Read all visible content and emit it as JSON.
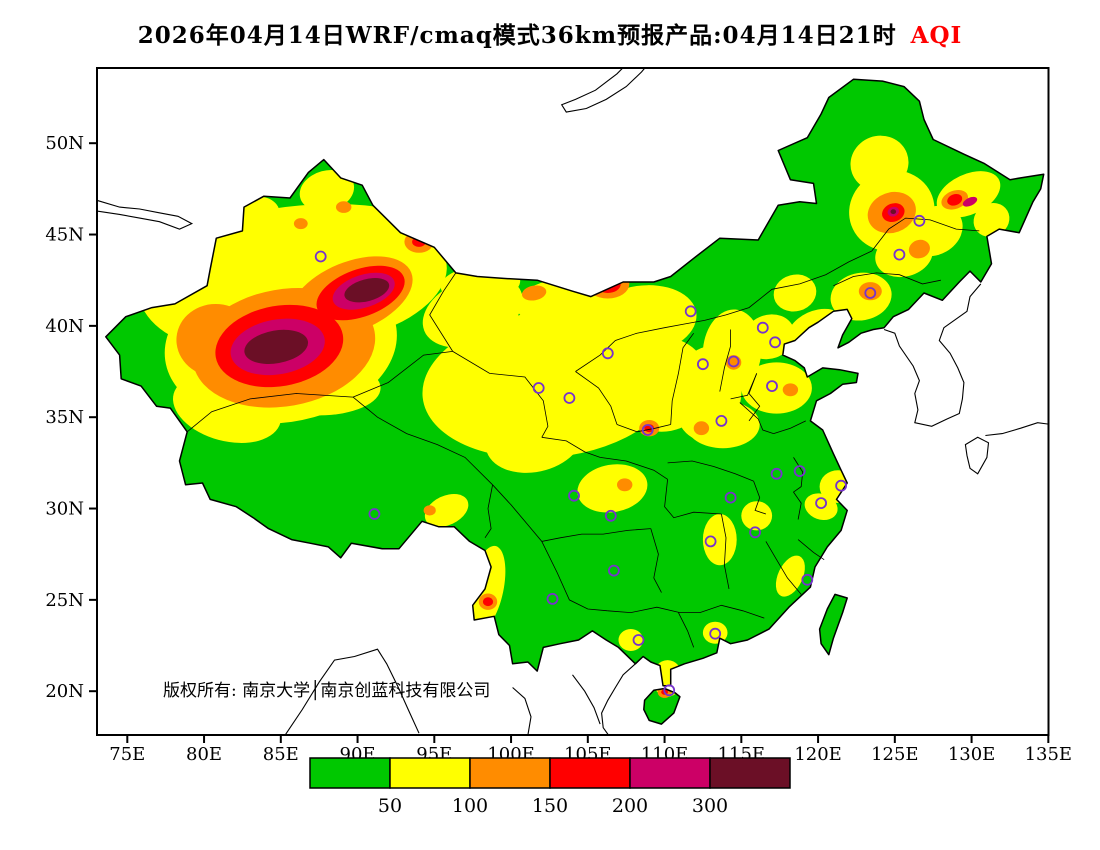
{
  "title": {
    "main": "2026年04月14日WRF/cmaq模式36km预报产品:04月14日21时",
    "aqi_label": "AQI",
    "aqi_color": "#ff0000"
  },
  "map": {
    "copyright": "版权所有: 南京大学│南京创蓝科技有限公司",
    "background": "#ffffff",
    "land_base_color": "#00c800",
    "border_color": "#000000",
    "station_marker_color": "#7733cc",
    "lat_ticks": [
      {
        "label": "50N",
        "lat": 50
      },
      {
        "label": "45N",
        "lat": 45
      },
      {
        "label": "40N",
        "lat": 40
      },
      {
        "label": "35N",
        "lat": 35
      },
      {
        "label": "30N",
        "lat": 30
      },
      {
        "label": "25N",
        "lat": 25
      },
      {
        "label": "20N",
        "lat": 20
      }
    ],
    "lon_ticks": [
      {
        "label": "75E",
        "lon": 75
      },
      {
        "label": "80E",
        "lon": 80
      },
      {
        "label": "85E",
        "lon": 85
      },
      {
        "label": "90E",
        "lon": 90
      },
      {
        "label": "95E",
        "lon": 95
      },
      {
        "label": "100E",
        "lon": 100
      },
      {
        "label": "105E",
        "lon": 105
      },
      {
        "label": "110E",
        "lon": 110
      },
      {
        "label": "115E",
        "lon": 115
      },
      {
        "label": "120E",
        "lon": 120
      },
      {
        "label": "125E",
        "lon": 125
      },
      {
        "label": "130E",
        "lon": 130
      },
      {
        "label": "135E",
        "lon": 135
      }
    ]
  },
  "legend": {
    "colors": [
      "#00c800",
      "#ffff00",
      "#ff8c00",
      "#ff0000",
      "#cc0066",
      "#6b0f26"
    ],
    "labels": [
      "50",
      "100",
      "150",
      "200",
      "300"
    ]
  },
  "chart_data": {
    "type": "heatmap",
    "title": "2026年04月14日WRF/cmaq模式36km预报产品:04月14日21时 AQI",
    "variable": "AQI",
    "model": "WRF/cmaq 36km",
    "valid_time": "04月14日21时",
    "lon_range": [
      75,
      135
    ],
    "lat_range": [
      20,
      50
    ],
    "levels": [
      {
        "label": "0-50",
        "color": "#00c800"
      },
      {
        "label": "50-100",
        "color": "#ffff00"
      },
      {
        "label": "100-150",
        "color": "#ff8c00"
      },
      {
        "label": "150-200",
        "color": "#ff0000"
      },
      {
        "label": "200-300",
        "color": "#cc0066"
      },
      {
        "label": "300+",
        "color": "#6b0f26"
      }
    ],
    "aqi_regions": {
      "yellow": [
        [
          86.5,
          44.0,
          9.0,
          2.6,
          -5
        ],
        [
          85.0,
          39.0,
          7.6,
          4.3,
          -8
        ],
        [
          90.5,
          42.2,
          5.5,
          2.6,
          -18
        ],
        [
          79.8,
          41.8,
          4.2,
          2.8,
          15
        ],
        [
          81.5,
          35.5,
          3.6,
          1.8,
          15
        ],
        [
          87.5,
          36.6,
          4.0,
          1.5,
          0
        ],
        [
          88.0,
          47.4,
          1.8,
          1.1,
          -15
        ],
        [
          82.8,
          45.8,
          2.2,
          1.2,
          -20
        ],
        [
          98.0,
          42.3,
          2.6,
          1.0,
          -5
        ],
        [
          102.5,
          36.8,
          8.3,
          4.0,
          -6
        ],
        [
          101.5,
          33.8,
          3.2,
          1.8,
          -12
        ],
        [
          97.5,
          40.8,
          3.4,
          1.8,
          -22
        ],
        [
          103.5,
          41.3,
          3.2,
          1.3,
          -5
        ],
        [
          108.5,
          40.3,
          3.6,
          1.9,
          -8
        ],
        [
          109.8,
          36.8,
          3.2,
          2.6,
          0
        ],
        [
          112.8,
          36.3,
          2.2,
          2.6,
          8
        ],
        [
          113.8,
          34.6,
          2.4,
          1.3,
          0
        ],
        [
          114.4,
          38.6,
          1.9,
          2.3,
          5
        ],
        [
          116.8,
          39.4,
          1.7,
          1.2,
          -20
        ],
        [
          117.3,
          36.6,
          2.3,
          1.4,
          0
        ],
        [
          119.8,
          39.8,
          1.9,
          1.0,
          -25
        ],
        [
          106.6,
          31.1,
          2.3,
          1.3,
          -10
        ],
        [
          95.8,
          29.9,
          1.5,
          0.8,
          -25
        ],
        [
          121.3,
          31.2,
          1.2,
          0.9,
          0
        ],
        [
          120.2,
          30.1,
          1.1,
          0.7,
          20
        ],
        [
          113.6,
          28.3,
          1.1,
          1.4,
          0
        ],
        [
          116.0,
          29.6,
          1.0,
          0.8,
          0
        ],
        [
          118.2,
          26.3,
          0.8,
          1.2,
          25
        ],
        [
          98.4,
          25.6,
          1.1,
          2.4,
          12
        ],
        [
          107.8,
          22.8,
          0.8,
          0.6,
          0
        ],
        [
          110.2,
          20.7,
          1.0,
          1.0,
          0
        ],
        [
          113.3,
          23.2,
          0.8,
          0.6,
          0
        ],
        [
          124.8,
          46.3,
          2.8,
          2.2,
          -20
        ],
        [
          127.6,
          45.2,
          1.9,
          1.3,
          -30
        ],
        [
          129.8,
          47.2,
          2.2,
          1.1,
          -25
        ],
        [
          124.0,
          48.9,
          1.9,
          1.5,
          -20
        ],
        [
          125.6,
          43.9,
          1.9,
          1.2,
          -15
        ],
        [
          122.8,
          41.6,
          2.0,
          1.3,
          -10
        ],
        [
          131.3,
          45.8,
          1.2,
          0.9,
          -30
        ],
        [
          118.5,
          41.8,
          1.4,
          1.0,
          -15
        ]
      ],
      "orange": [
        [
          85.2,
          38.8,
          6.0,
          3.2,
          -10
        ],
        [
          89.6,
          41.6,
          4.2,
          1.9,
          -22
        ],
        [
          80.8,
          39.2,
          2.6,
          2.0,
          5
        ],
        [
          94.0,
          44.6,
          0.95,
          0.6,
          0
        ],
        [
          89.1,
          46.5,
          0.5,
          0.32,
          0
        ],
        [
          86.3,
          45.6,
          0.45,
          0.3,
          0
        ],
        [
          106.3,
          42.3,
          1.4,
          0.8,
          0
        ],
        [
          101.5,
          41.8,
          0.8,
          0.4,
          -10
        ],
        [
          109.0,
          34.4,
          0.65,
          0.45,
          0
        ],
        [
          112.4,
          34.4,
          0.5,
          0.38,
          0
        ],
        [
          118.2,
          36.5,
          0.5,
          0.35,
          0
        ],
        [
          114.5,
          38.0,
          0.5,
          0.4,
          0
        ],
        [
          124.8,
          46.2,
          1.6,
          1.1,
          -20
        ],
        [
          126.6,
          44.2,
          0.7,
          0.5,
          -20
        ],
        [
          128.9,
          46.9,
          0.9,
          0.5,
          -20
        ],
        [
          123.4,
          41.9,
          0.75,
          0.5,
          0
        ],
        [
          98.5,
          24.9,
          0.6,
          0.45,
          0
        ],
        [
          110.0,
          19.95,
          0.45,
          0.32,
          0
        ],
        [
          107.4,
          31.3,
          0.5,
          0.35,
          0
        ],
        [
          94.7,
          29.9,
          0.4,
          0.28,
          0
        ]
      ],
      "red": [
        [
          84.9,
          38.9,
          4.2,
          2.2,
          -10
        ],
        [
          90.2,
          41.8,
          3.0,
          1.3,
          -20
        ],
        [
          106.3,
          42.3,
          0.85,
          0.5,
          0
        ],
        [
          94.0,
          44.6,
          0.45,
          0.28,
          0
        ],
        [
          124.9,
          46.2,
          0.75,
          0.5,
          -20
        ],
        [
          128.9,
          46.9,
          0.5,
          0.3,
          -20
        ],
        [
          109.0,
          34.4,
          0.32,
          0.22,
          0
        ],
        [
          98.5,
          24.9,
          0.33,
          0.24,
          0
        ],
        [
          110.0,
          19.95,
          0.22,
          0.15,
          0
        ]
      ],
      "magenta": [
        [
          84.8,
          38.85,
          3.1,
          1.5,
          -10
        ],
        [
          90.4,
          41.9,
          2.1,
          0.9,
          -18
        ],
        [
          106.3,
          42.3,
          0.42,
          0.26,
          0
        ],
        [
          124.9,
          46.25,
          0.38,
          0.26,
          -20
        ],
        [
          129.9,
          46.8,
          0.5,
          0.22,
          -25
        ]
      ],
      "dark": [
        [
          84.7,
          38.85,
          2.1,
          0.9,
          -10
        ],
        [
          90.6,
          41.95,
          1.5,
          0.6,
          -15
        ],
        [
          124.9,
          46.25,
          0.18,
          0.13,
          0
        ]
      ]
    },
    "stations": [
      [
        87.6,
        43.8
      ],
      [
        91.1,
        29.7
      ],
      [
        101.8,
        36.6
      ],
      [
        103.8,
        36.05
      ],
      [
        106.3,
        38.5
      ],
      [
        111.7,
        40.8
      ],
      [
        112.5,
        37.9
      ],
      [
        114.5,
        38.05
      ],
      [
        116.4,
        39.9
      ],
      [
        117.2,
        39.1
      ],
      [
        117.0,
        36.7
      ],
      [
        113.7,
        34.8
      ],
      [
        108.9,
        34.3
      ],
      [
        104.1,
        30.7
      ],
      [
        106.5,
        29.6
      ],
      [
        106.7,
        26.6
      ],
      [
        102.7,
        25.05
      ],
      [
        108.3,
        22.8
      ],
      [
        110.3,
        20.05
      ],
      [
        113.3,
        23.15
      ],
      [
        113.0,
        28.2
      ],
      [
        115.9,
        28.7
      ],
      [
        114.3,
        30.6
      ],
      [
        117.3,
        31.9
      ],
      [
        118.8,
        32.05
      ],
      [
        121.5,
        31.25
      ],
      [
        120.2,
        30.3
      ],
      [
        119.3,
        26.1
      ],
      [
        123.4,
        41.8
      ],
      [
        125.3,
        43.9
      ],
      [
        126.6,
        45.75
      ]
    ]
  }
}
